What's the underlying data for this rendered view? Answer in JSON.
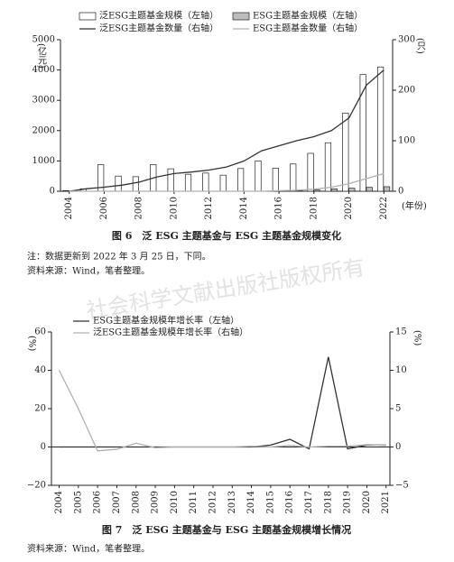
{
  "watermark": "社会科学文献出版社版权所有",
  "figures": [
    {
      "caption": "图 6　泛 ESG 主题基金与 ESG 主题基金规模变化",
      "notes": [
        "注：数据更新到 2022 年 3 月 25 日，下同。",
        "资料来源：Wind，笔者整理。"
      ]
    },
    {
      "caption": "图 7　泛 ESG 主题基金与 ESG 主题基金规模增长情况",
      "notes": [
        "资料来源：Wind，笔者整理。"
      ]
    }
  ],
  "chart_data": [
    {
      "type": "bar",
      "legend": "top",
      "x": [
        2004,
        2005,
        2006,
        2007,
        2008,
        2009,
        2010,
        2011,
        2012,
        2013,
        2014,
        2015,
        2016,
        2017,
        2018,
        2019,
        2020,
        2021,
        2022
      ],
      "xlim": [
        2003.5,
        2022.5
      ],
      "xticks": [
        2004,
        2006,
        2008,
        2010,
        2012,
        2014,
        2016,
        2018,
        2020,
        2022
      ],
      "ylim": [
        0,
        5000
      ],
      "yticks": [
        0,
        1000,
        2000,
        3000,
        4000,
        5000
      ],
      "y2lim": [
        0,
        300
      ],
      "y2ticks": [
        0,
        100,
        200,
        300
      ],
      "y_label": "(亿元)",
      "y2_label": "(只)",
      "x_label": "(年份)",
      "series": [
        {
          "name": "泛ESG主题基金规模（左轴）",
          "type": "bar",
          "color": "#ffffff",
          "values": [
            20,
            80,
            880,
            500,
            480,
            880,
            740,
            560,
            600,
            530,
            750,
            1000,
            760,
            900,
            1250,
            1600,
            2580,
            3850,
            4100
          ]
        },
        {
          "name": "ESG主题基金规模（左轴）",
          "type": "bar",
          "color": "#bdbdbd",
          "values": [
            0,
            0,
            0,
            0,
            0,
            0,
            0,
            0,
            0,
            0,
            0,
            0,
            0,
            20,
            40,
            80,
            100,
            130,
            150
          ]
        },
        {
          "name": "泛ESG主题基金数量（右轴）",
          "type": "line",
          "axis": "y2",
          "color": "#333333",
          "values": [
            0,
            5,
            8,
            12,
            18,
            28,
            35,
            38,
            42,
            48,
            60,
            80,
            90,
            100,
            108,
            120,
            145,
            210,
            240
          ]
        },
        {
          "name": "ESG主题基金数量（右轴）",
          "type": "line",
          "axis": "y2",
          "color": "#b0b0b0",
          "values": [
            0,
            0,
            0,
            0,
            0,
            0,
            0,
            0,
            0,
            0,
            0,
            0,
            1,
            2,
            4,
            8,
            15,
            25,
            35
          ]
        }
      ]
    },
    {
      "type": "line",
      "legend": "upper left",
      "x": [
        2004,
        2005,
        2006,
        2007,
        2008,
        2009,
        2010,
        2011,
        2012,
        2013,
        2014,
        2015,
        2016,
        2017,
        2018,
        2019,
        2020,
        2021
      ],
      "xlim": [
        2003.6,
        2021.2
      ],
      "xticks": [
        2004,
        2005,
        2006,
        2007,
        2008,
        2009,
        2010,
        2011,
        2012,
        2013,
        2014,
        2015,
        2016,
        2017,
        2018,
        2019,
        2020,
        2021
      ],
      "ylim": [
        -20,
        60
      ],
      "yticks": [
        {
          "value": -20,
          "label": "−20"
        },
        0,
        20,
        40,
        60
      ],
      "y2lim": [
        -5,
        15
      ],
      "y2ticks": [
        {
          "value": -5,
          "label": "−5"
        },
        0,
        5,
        10,
        15
      ],
      "y_label": "(%)",
      "y2_label": "(%)",
      "series": [
        {
          "name": "ESG主题基金规模年增长率（左轴）",
          "type": "line",
          "color": "#333333",
          "values": [
            0,
            0,
            0,
            0,
            0,
            0,
            0,
            0,
            0,
            0,
            0,
            1,
            4,
            -1,
            47,
            -1,
            1,
            1
          ]
        },
        {
          "name": "泛ESG主题基金规模年增长率（右轴）",
          "type": "line",
          "axis": "y2",
          "color": "#b0b0b0",
          "values": [
            10,
            5,
            -0.5,
            -0.3,
            0.5,
            -0.1,
            0,
            0,
            0,
            0,
            0.1,
            0,
            0.2,
            0,
            0.1,
            0.1,
            0.3,
            0.2
          ]
        }
      ]
    }
  ]
}
